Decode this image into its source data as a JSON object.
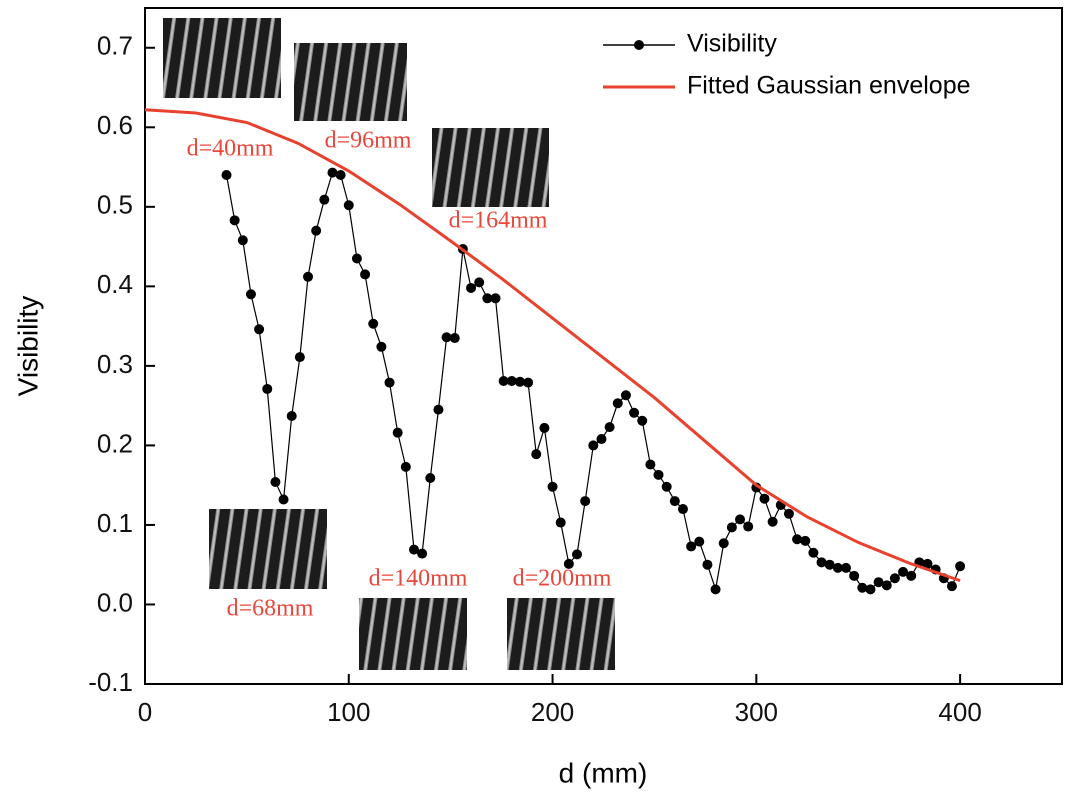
{
  "chart_data": {
    "type": "line",
    "xlabel": "d (mm)",
    "ylabel": "Visibility",
    "xlim": [
      0,
      450
    ],
    "xticks": [
      0,
      100,
      200,
      300,
      400
    ],
    "ylim": [
      -0.1,
      0.75
    ],
    "yticks": [
      -0.1,
      {
        "value": 0,
        "label": "0.0"
      },
      0.1,
      0.2,
      0.3,
      0.4,
      0.5,
      0.6,
      0.7
    ],
    "legend": "upper right",
    "series": [
      {
        "name": "Visibility",
        "color": "#000000",
        "marker": "circle",
        "x": [
          40,
          44,
          48,
          52,
          56,
          60,
          64,
          68,
          72,
          76,
          80,
          84,
          88,
          92,
          96,
          100,
          104,
          108,
          112,
          116,
          120,
          124,
          128,
          132,
          136,
          140,
          144,
          148,
          152,
          156,
          160,
          164,
          168,
          172,
          176,
          180,
          184,
          188,
          192,
          196,
          200,
          204,
          208,
          212,
          216,
          220,
          224,
          228,
          232,
          236,
          240,
          244,
          248,
          252,
          256,
          260,
          264,
          268,
          272,
          276,
          280,
          284,
          288,
          292,
          296,
          300,
          304,
          308,
          312,
          316,
          320,
          324,
          328,
          332,
          336,
          340,
          344,
          348,
          352,
          356,
          360,
          364,
          368,
          372,
          376,
          380,
          384,
          388,
          392,
          396,
          400
        ],
        "values": [
          0.54,
          0.483,
          0.458,
          0.39,
          0.346,
          0.271,
          0.154,
          0.132,
          0.237,
          0.311,
          0.412,
          0.47,
          0.509,
          0.543,
          0.54,
          0.502,
          0.435,
          0.415,
          0.353,
          0.324,
          0.279,
          0.216,
          0.173,
          0.069,
          0.064,
          0.159,
          0.245,
          0.336,
          0.335,
          0.447,
          0.398,
          0.405,
          0.385,
          0.385,
          0.281,
          0.281,
          0.28,
          0.279,
          0.189,
          0.222,
          0.148,
          0.103,
          0.051,
          0.063,
          0.13,
          0.2,
          0.208,
          0.223,
          0.253,
          0.263,
          0.241,
          0.231,
          0.176,
          0.163,
          0.148,
          0.13,
          0.12,
          0.073,
          0.079,
          0.05,
          0.019,
          0.077,
          0.097,
          0.107,
          0.098,
          0.147,
          0.133,
          0.104,
          0.125,
          0.114,
          0.082,
          0.08,
          0.065,
          0.053,
          0.05,
          0.046,
          0.046,
          0.036,
          0.021,
          0.019,
          0.028,
          0.024,
          0.033,
          0.041,
          0.036,
          0.053,
          0.051,
          0.044,
          0.033,
          0.023,
          0.048
        ]
      },
      {
        "name": "Fitted Gaussian envelope",
        "color": "#e8412e",
        "x": [
          0,
          25,
          50,
          75,
          100,
          125,
          150,
          175,
          200,
          225,
          250,
          275,
          300,
          325,
          350,
          375,
          400
        ],
        "values": [
          0.622,
          0.618,
          0.606,
          0.58,
          0.545,
          0.503,
          0.457,
          0.41,
          0.36,
          0.31,
          0.26,
          0.205,
          0.15,
          0.11,
          0.078,
          0.052,
          0.03
        ]
      }
    ],
    "annotations": [
      "d=40mm",
      "d=96mm",
      "d=164mm",
      "d=68mm",
      "d=140mm",
      "d=200mm"
    ],
    "annotation_color": "#e8473a"
  }
}
